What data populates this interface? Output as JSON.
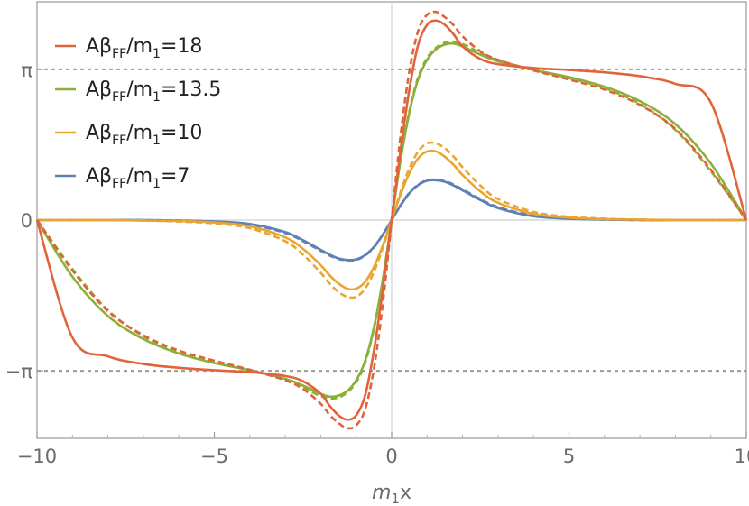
{
  "chart_data": {
    "type": "line",
    "title": "",
    "xlabel_main": "m",
    "xlabel_sub": "1",
    "xlabel_tail": "x",
    "ylabel": "",
    "xlim": [
      -10,
      10
    ],
    "ylim": [
      -4.55,
      4.55
    ],
    "xticks": [
      {
        "value": -10,
        "label": "−10"
      },
      {
        "value": -5,
        "label": "−5"
      },
      {
        "value": 0,
        "label": "0"
      },
      {
        "value": 5,
        "label": "5"
      },
      {
        "value": 10,
        "label": "10"
      }
    ],
    "yticks": [
      {
        "value": 3.14159,
        "label": "π"
      },
      {
        "value": 0,
        "label": "0"
      },
      {
        "value": -3.14159,
        "label": "−π"
      }
    ],
    "reference_lines": [
      3.14159,
      -3.14159
    ],
    "x": [
      -10,
      -9,
      -8,
      -7,
      -6,
      -5,
      -4,
      -3,
      -2.5,
      -2,
      -1.75,
      -1.5,
      -1.25,
      -1,
      -0.75,
      -0.5,
      -0.25,
      0,
      0.25,
      0.5,
      0.75,
      1,
      1.25,
      1.5,
      1.75,
      2,
      2.5,
      3,
      4,
      5,
      6,
      7,
      8,
      9,
      10
    ],
    "series": [
      {
        "name_main": "Aβ",
        "name_sub": "FF",
        "name_mid": "/m",
        "name_sub2": "1",
        "name_tail": "=18",
        "color": "#e0633a",
        "solid": [
          0,
          -2.45,
          -2.84,
          -3.0,
          -3.08,
          -3.13,
          -3.17,
          -3.25,
          -3.36,
          -3.62,
          -3.87,
          -4.07,
          -4.16,
          -4.07,
          -3.66,
          -2.72,
          -1.45,
          0,
          1.45,
          2.72,
          3.66,
          4.07,
          4.16,
          4.07,
          3.87,
          3.62,
          3.36,
          3.25,
          3.17,
          3.13,
          3.08,
          3.0,
          2.84,
          2.45,
          0
        ],
        "dashed": [
          0,
          -1.05,
          -1.9,
          -2.4,
          -2.72,
          -2.93,
          -3.12,
          -3.34,
          -3.52,
          -3.83,
          -4.06,
          -4.23,
          -4.34,
          -4.28,
          -3.95,
          -3.1,
          -1.75,
          0,
          1.75,
          3.1,
          3.95,
          4.28,
          4.34,
          4.23,
          4.06,
          3.83,
          3.52,
          3.34,
          3.12,
          2.93,
          2.72,
          2.4,
          1.9,
          1.05,
          0
        ]
      },
      {
        "name_main": "Aβ",
        "name_sub": "FF",
        "name_mid": "/m",
        "name_sub2": "1",
        "name_tail": "=13.5",
        "color": "#8bb03a",
        "solid": [
          0,
          -1.18,
          -2.0,
          -2.48,
          -2.78,
          -2.98,
          -3.13,
          -3.31,
          -3.45,
          -3.62,
          -3.68,
          -3.66,
          -3.56,
          -3.34,
          -2.94,
          -2.24,
          -1.24,
          0,
          1.24,
          2.24,
          2.94,
          3.34,
          3.56,
          3.66,
          3.68,
          3.62,
          3.45,
          3.31,
          3.13,
          2.98,
          2.78,
          2.48,
          2.0,
          1.18,
          0
        ],
        "dashed": [
          0,
          -1.02,
          -1.88,
          -2.42,
          -2.75,
          -2.96,
          -3.13,
          -3.33,
          -3.49,
          -3.67,
          -3.72,
          -3.7,
          -3.59,
          -3.38,
          -2.98,
          -2.27,
          -1.26,
          0,
          1.26,
          2.27,
          2.98,
          3.38,
          3.59,
          3.7,
          3.72,
          3.67,
          3.49,
          3.33,
          3.13,
          2.96,
          2.75,
          2.42,
          1.88,
          1.02,
          0
        ]
      },
      {
        "name_main": "Aβ",
        "name_sub": "FF",
        "name_mid": "/m",
        "name_sub2": "1",
        "name_tail": "=10",
        "color": "#e9a52f",
        "solid": [
          0,
          0,
          0,
          -0.01,
          -0.02,
          -0.05,
          -0.13,
          -0.36,
          -0.6,
          -0.94,
          -1.15,
          -1.32,
          -1.43,
          -1.43,
          -1.29,
          -0.98,
          -0.53,
          0,
          0.53,
          0.98,
          1.29,
          1.43,
          1.43,
          1.32,
          1.15,
          0.94,
          0.6,
          0.36,
          0.13,
          0.05,
          0.02,
          0.01,
          0,
          0,
          0
        ],
        "dashed": [
          0,
          0,
          0,
          -0.01,
          -0.03,
          -0.07,
          -0.17,
          -0.44,
          -0.72,
          -1.1,
          -1.32,
          -1.5,
          -1.6,
          -1.6,
          -1.43,
          -1.08,
          -0.58,
          0,
          0.58,
          1.08,
          1.43,
          1.6,
          1.6,
          1.5,
          1.32,
          1.1,
          0.72,
          0.44,
          0.17,
          0.07,
          0.03,
          0.01,
          0,
          0,
          0
        ]
      },
      {
        "name_main": "Aβ",
        "name_sub": "FF",
        "name_mid": "/m",
        "name_sub2": "1",
        "name_tail": "=7",
        "color": "#5e81b5",
        "solid": [
          0,
          0,
          0,
          0,
          -0.01,
          -0.03,
          -0.08,
          -0.25,
          -0.42,
          -0.62,
          -0.72,
          -0.8,
          -0.83,
          -0.82,
          -0.73,
          -0.56,
          -0.3,
          0,
          0.3,
          0.56,
          0.73,
          0.82,
          0.83,
          0.8,
          0.72,
          0.62,
          0.42,
          0.25,
          0.08,
          0.03,
          0.01,
          0,
          0,
          0,
          0
        ],
        "dashed": [
          0,
          0,
          0,
          0,
          -0.01,
          -0.03,
          -0.09,
          -0.27,
          -0.44,
          -0.64,
          -0.74,
          -0.81,
          -0.84,
          -0.83,
          -0.74,
          -0.57,
          -0.31,
          0,
          0.31,
          0.57,
          0.74,
          0.83,
          0.84,
          0.81,
          0.74,
          0.64,
          0.44,
          0.27,
          0.09,
          0.03,
          0.01,
          0,
          0,
          0,
          0
        ]
      }
    ],
    "legend_position": "top-left"
  }
}
